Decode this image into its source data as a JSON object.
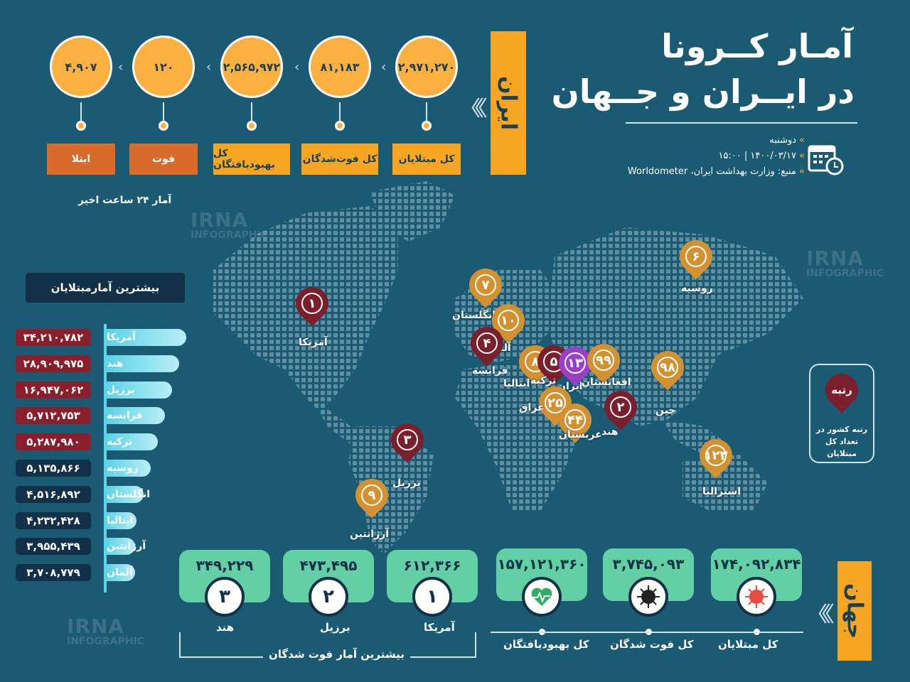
{
  "header": {
    "title_line1": "آمـار کــرونا",
    "title_line2": "در ایــران و جــهان",
    "day": "دوشنبه",
    "datetime": "۱۴۰۰/۰۳/۱۷  |  ۱۵:۰۰",
    "source": "منبع: وزارت بهداشت ایران، Worldometer"
  },
  "iran": {
    "label": "ایران",
    "circles": [
      {
        "value": "۲,۹۷۱,۲۷۰",
        "label": "کل مبتلایان",
        "arc": "#b24a5a"
      },
      {
        "value": "۸۱,۱۸۳",
        "label": "کل فوت‌شدگان",
        "arc": "#123047"
      },
      {
        "value": "۲,۵۶۵,۹۷۲",
        "label": "کل بهبودیافتگان",
        "arc": "#3aa55a"
      },
      {
        "value": "۱۲۰",
        "label": "فوت",
        "arc": "#123047"
      },
      {
        "value": "۴,۹۰۷",
        "label": "ابتلا",
        "arc": "#b24a5a"
      }
    ],
    "last24_caption": "آمار ۲۴ ساعت اخیر"
  },
  "ranking": {
    "title": "بیشترین آمارمبتلایان",
    "rows": [
      {
        "country": "آمریکا",
        "value": "۳۴,۲۱۰,۷۸۲",
        "color": "#8a1f2b"
      },
      {
        "country": "هند",
        "value": "۲۸,۹۰۹,۹۷۵",
        "color": "#8a1f2b"
      },
      {
        "country": "برزیل",
        "value": "۱۶,۹۴۷,۰۶۲",
        "color": "#8a1f2b"
      },
      {
        "country": "فرانسه",
        "value": "۵,۷۱۲,۷۵۳",
        "color": "#8a1f2b"
      },
      {
        "country": "ترکیه",
        "value": "۵,۲۸۷,۹۸۰",
        "color": "#8a1f2b"
      },
      {
        "country": "روسیه",
        "value": "۵,۱۳۵,۸۶۶",
        "color": "#123047"
      },
      {
        "country": "انگلستان",
        "value": "۴,۵۱۶,۸۹۲",
        "color": "#123047"
      },
      {
        "country": "ایتالیا",
        "value": "۴,۲۳۲,۴۲۸",
        "color": "#123047"
      },
      {
        "country": "آرژانتین",
        "value": "۳,۹۵۵,۴۳۹",
        "color": "#123047"
      },
      {
        "country": "آلمان",
        "value": "۳,۷۰۸,۷۷۹",
        "color": "#123047"
      }
    ]
  },
  "map_pins": [
    {
      "country": "آمریکا",
      "rank": "۱",
      "color": "#7a1f2b"
    },
    {
      "country": "برزیل",
      "rank": "۳",
      "color": "#7a1f2b"
    },
    {
      "country": "آرژانتین",
      "rank": "۹",
      "color": "#d4912f"
    },
    {
      "country": "انگلستان",
      "rank": "۷",
      "color": "#d4912f"
    },
    {
      "country": "آلمان",
      "rank": "۱۰",
      "color": "#d4912f"
    },
    {
      "country": "فرانسه",
      "rank": "۴",
      "color": "#7a1f2b"
    },
    {
      "country": "ایتالیا",
      "rank": "۸",
      "color": "#d4912f"
    },
    {
      "country": "ترکیه",
      "rank": "۵",
      "color": "#7a1f2b"
    },
    {
      "country": "ایران",
      "rank": "۱۳",
      "color": "#9b3fc9"
    },
    {
      "country": "افغانستان",
      "rank": "۹۹",
      "color": "#d4912f"
    },
    {
      "country": "عراق",
      "rank": "۲۵",
      "color": "#d4912f"
    },
    {
      "country": "عربستان",
      "rank": "۴۴",
      "color": "#d4912f"
    },
    {
      "country": "هند",
      "rank": "۲",
      "color": "#7a1f2b"
    },
    {
      "country": "چین",
      "rank": "۹۸",
      "color": "#d4912f"
    },
    {
      "country": "روسیه",
      "rank": "۶",
      "color": "#d4912f"
    },
    {
      "country": "استرالیا",
      "rank": "۱۲۳",
      "color": "#d4912f"
    }
  ],
  "legend": {
    "pin_text": "رتبه",
    "caption_line1": "رتبه کشور در",
    "caption_line2": "تعداد کل مبتلایان"
  },
  "world": {
    "label": "جهان",
    "stats": [
      {
        "value": "۱۷۴,۰۹۲,۸۳۴",
        "label": "کل مبتلایان",
        "icon": "virus-icon"
      },
      {
        "value": "۳,۷۴۵,۰۹۳",
        "label": "کل فوت شدگان",
        "icon": "black-virus-icon"
      },
      {
        "value": "۱۵۷,۱۲۱,۳۶۰",
        "label": "کل بهبودیافتگان",
        "icon": "heart-pulse-icon"
      }
    ],
    "deaths_top": [
      {
        "rank": "۱",
        "value": "۶۱۲,۳۶۶",
        "country": "آمریکا"
      },
      {
        "rank": "۲",
        "value": "۴۷۳,۴۹۵",
        "country": "برزیل"
      },
      {
        "rank": "۳",
        "value": "۳۴۹,۲۲۹",
        "country": "هند"
      }
    ],
    "deaths_caption": "بیشترین آمار فوت شدگان"
  },
  "watermark": {
    "line1": "IRNA",
    "line2": "INFOGRAPHIC"
  }
}
